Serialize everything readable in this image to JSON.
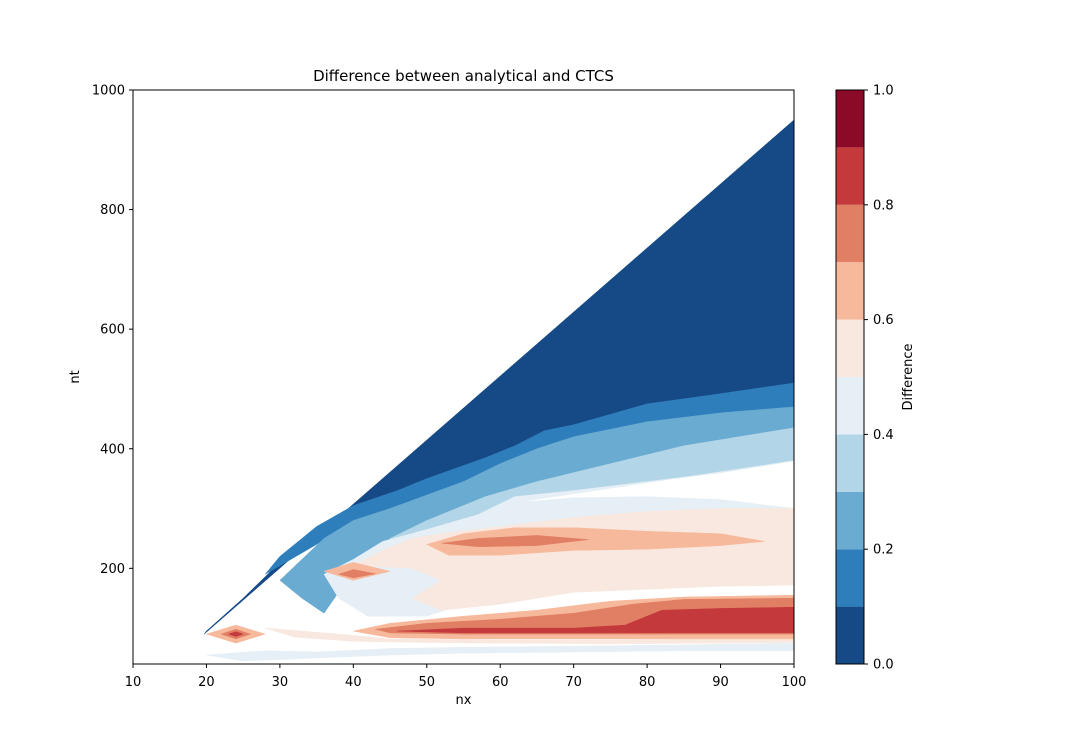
{
  "chart_data": {
    "type": "contour",
    "title": "Difference between analytical and CTCS",
    "xlabel": "nx",
    "ylabel": "nt",
    "xlim": [
      10,
      100
    ],
    "ylim": [
      40,
      1000
    ],
    "xticks": [
      "10",
      "20",
      "30",
      "40",
      "50",
      "60",
      "70",
      "80",
      "90",
      "100"
    ],
    "yticks": [
      "200",
      "400",
      "600",
      "800",
      "1000"
    ],
    "grid": false,
    "colorbar": {
      "label": "Difference",
      "ticks": [
        "0.0",
        "0.2",
        "0.4",
        "0.6",
        "0.8",
        "1.0"
      ],
      "levels": [
        0.0,
        0.1,
        0.2,
        0.3,
        0.4,
        0.5,
        0.6,
        0.7,
        0.8,
        0.9,
        1.0
      ],
      "colors": [
        "#154a87",
        "#2f7ebc",
        "#6aabd2",
        "#b2d5e8",
        "#e5eff5",
        "#f9e8df",
        "#f7b99c",
        "#e17f65",
        "#c43a3c",
        "#8b0a27"
      ]
    },
    "domain_note_boundary": {
      "x": [
        19.7,
        100
      ],
      "y": [
        90,
        950
      ]
    },
    "regions": [
      {
        "name": "upper-dark",
        "level": 0,
        "polygon": [
          [
            19.7,
            90
          ],
          [
            100,
            950
          ],
          [
            100,
            510
          ],
          [
            90,
            492
          ],
          [
            80,
            475
          ],
          [
            70,
            440
          ],
          [
            66,
            430
          ],
          [
            62,
            405
          ],
          [
            58,
            385
          ],
          [
            50,
            335
          ],
          [
            46,
            310
          ],
          [
            40,
            290
          ],
          [
            35,
            260
          ],
          [
            30,
            210
          ],
          [
            25,
            150
          ],
          [
            20,
            95
          ]
        ]
      },
      {
        "name": "band-0.1",
        "level": 1,
        "polygon": [
          [
            100,
            510
          ],
          [
            90,
            492
          ],
          [
            80,
            475
          ],
          [
            70,
            440
          ],
          [
            66,
            430
          ],
          [
            62,
            405
          ],
          [
            58,
            385
          ],
          [
            50,
            350
          ],
          [
            46,
            330
          ],
          [
            40,
            305
          ],
          [
            35,
            270
          ],
          [
            30,
            220
          ],
          [
            28,
            190
          ],
          [
            35,
            240
          ],
          [
            40,
            280
          ],
          [
            45,
            300
          ],
          [
            55,
            345
          ],
          [
            60,
            375
          ],
          [
            65,
            400
          ],
          [
            70,
            420
          ],
          [
            80,
            445
          ],
          [
            90,
            460
          ],
          [
            100,
            470
          ]
        ]
      },
      {
        "name": "band-0.2",
        "level": 2,
        "polygon": [
          [
            100,
            470
          ],
          [
            90,
            460
          ],
          [
            80,
            445
          ],
          [
            70,
            420
          ],
          [
            65,
            400
          ],
          [
            60,
            375
          ],
          [
            55,
            345
          ],
          [
            45,
            300
          ],
          [
            40,
            280
          ],
          [
            36,
            250
          ],
          [
            30,
            180
          ],
          [
            33,
            150
          ],
          [
            36,
            125
          ],
          [
            38,
            160
          ],
          [
            42,
            200
          ],
          [
            45,
            250
          ],
          [
            50,
            280
          ],
          [
            58,
            320
          ],
          [
            65,
            345
          ],
          [
            75,
            375
          ],
          [
            85,
            405
          ],
          [
            100,
            435
          ]
        ]
      },
      {
        "name": "band-0.3",
        "level": 3,
        "polygon": [
          [
            100,
            435
          ],
          [
            85,
            405
          ],
          [
            75,
            375
          ],
          [
            65,
            345
          ],
          [
            58,
            320
          ],
          [
            50,
            280
          ],
          [
            45,
            250
          ],
          [
            42,
            200
          ],
          [
            40,
            175
          ],
          [
            45,
            225
          ],
          [
            50,
            255
          ],
          [
            57,
            290
          ],
          [
            62,
            320
          ],
          [
            70,
            330
          ],
          [
            80,
            345
          ],
          [
            90,
            360
          ],
          [
            100,
            380
          ]
        ]
      },
      {
        "name": "band-0.4-upper",
        "level": 4,
        "polygon": [
          [
            100,
            380
          ],
          [
            90,
            360
          ],
          [
            80,
            345
          ],
          [
            70,
            330
          ],
          [
            62,
            320
          ],
          [
            57,
            290
          ],
          [
            50,
            265
          ],
          [
            44,
            245
          ],
          [
            40,
            215
          ],
          [
            36,
            190
          ],
          [
            38,
            150
          ],
          [
            42,
            120
          ],
          [
            50,
            120
          ],
          [
            55,
            140
          ],
          [
            62,
            160
          ],
          [
            70,
            170
          ],
          [
            80,
            175
          ],
          [
            90,
            178
          ],
          [
            100,
            180
          ],
          [
            100,
            300
          ],
          [
            90,
            315
          ],
          [
            80,
            320
          ],
          [
            70,
            318
          ],
          [
            62,
            310
          ]
        ]
      },
      {
        "name": "band-0.4-lower",
        "level": 4,
        "polygon": [
          [
            20,
            55
          ],
          [
            25,
            45
          ],
          [
            35,
            50
          ],
          [
            45,
            55
          ],
          [
            55,
            58
          ],
          [
            70,
            60
          ],
          [
            85,
            62
          ],
          [
            100,
            62
          ],
          [
            100,
            75
          ],
          [
            85,
            72
          ],
          [
            70,
            70
          ],
          [
            55,
            68
          ],
          [
            45,
            66
          ],
          [
            35,
            60
          ],
          [
            28,
            62
          ]
        ]
      },
      {
        "name": "band-0.5",
        "level": 5,
        "polygon": [
          [
            100,
            300
          ],
          [
            90,
            300
          ],
          [
            80,
            295
          ],
          [
            70,
            285
          ],
          [
            60,
            270
          ],
          [
            53,
            260
          ],
          [
            48,
            250
          ],
          [
            44,
            230
          ],
          [
            40,
            205
          ],
          [
            48,
            200
          ],
          [
            52,
            180
          ],
          [
            48,
            150
          ],
          [
            52,
            130
          ],
          [
            60,
            140
          ],
          [
            70,
            160
          ],
          [
            80,
            165
          ],
          [
            90,
            170
          ],
          [
            100,
            172
          ]
        ]
      },
      {
        "name": "band-0.5-lower",
        "level": 5,
        "polygon": [
          [
            28,
            100
          ],
          [
            32,
            85
          ],
          [
            40,
            78
          ],
          [
            50,
            76
          ],
          [
            60,
            75
          ],
          [
            75,
            74
          ],
          [
            90,
            75
          ],
          [
            100,
            76
          ],
          [
            100,
            85
          ],
          [
            90,
            82
          ],
          [
            75,
            80
          ],
          [
            60,
            80
          ],
          [
            45,
            82
          ],
          [
            38,
            90
          ]
        ]
      },
      {
        "name": "band-0.6-upper",
        "level": 6,
        "polygon": [
          [
            50,
            240
          ],
          [
            55,
            258
          ],
          [
            62,
            268
          ],
          [
            70,
            268
          ],
          [
            80,
            262
          ],
          [
            90,
            258
          ],
          [
            96,
            245
          ],
          [
            90,
            238
          ],
          [
            80,
            232
          ],
          [
            70,
            230
          ],
          [
            60,
            222
          ],
          [
            53,
            222
          ]
        ]
      },
      {
        "name": "band-0.6-mid",
        "level": 6,
        "polygon": [
          [
            36,
            195
          ],
          [
            40,
            210
          ],
          [
            45,
            195
          ],
          [
            40,
            180
          ]
        ]
      },
      {
        "name": "band-0.6-lower",
        "level": 6,
        "polygon": [
          [
            40,
            95
          ],
          [
            45,
            108
          ],
          [
            55,
            120
          ],
          [
            65,
            130
          ],
          [
            75,
            145
          ],
          [
            85,
            152
          ],
          [
            100,
            155
          ],
          [
            100,
            82
          ],
          [
            85,
            82
          ],
          [
            70,
            82
          ],
          [
            55,
            82
          ],
          [
            45,
            84
          ]
        ]
      },
      {
        "name": "band-0.6-spot",
        "level": 6,
        "polygon": [
          [
            20,
            90
          ],
          [
            24,
            105
          ],
          [
            28,
            90
          ],
          [
            24,
            75
          ]
        ]
      },
      {
        "name": "band-0.7-upper",
        "level": 7,
        "polygon": [
          [
            52,
            242
          ],
          [
            57,
            250
          ],
          [
            65,
            255
          ],
          [
            72,
            248
          ],
          [
            65,
            238
          ],
          [
            57,
            236
          ]
        ]
      },
      {
        "name": "band-0.7-mid",
        "level": 7,
        "polygon": [
          [
            38,
            190
          ],
          [
            40,
            198
          ],
          [
            43,
            191
          ],
          [
            40,
            184
          ]
        ]
      },
      {
        "name": "band-0.7-lower",
        "level": 7,
        "polygon": [
          [
            43,
            98
          ],
          [
            50,
            108
          ],
          [
            60,
            115
          ],
          [
            70,
            125
          ],
          [
            78,
            140
          ],
          [
            85,
            148
          ],
          [
            100,
            150
          ],
          [
            100,
            90
          ],
          [
            85,
            90
          ],
          [
            70,
            90
          ],
          [
            55,
            90
          ],
          [
            45,
            92
          ]
        ]
      },
      {
        "name": "band-0.7-spot",
        "level": 7,
        "polygon": [
          [
            22,
            90
          ],
          [
            24,
            98
          ],
          [
            26,
            90
          ],
          [
            24,
            82
          ]
        ]
      },
      {
        "name": "band-0.8-lower",
        "level": 8,
        "polygon": [
          [
            46,
            95
          ],
          [
            55,
            100
          ],
          [
            70,
            100
          ],
          [
            77,
            105
          ],
          [
            82,
            130
          ],
          [
            90,
            133
          ],
          [
            100,
            135
          ],
          [
            100,
            92
          ],
          [
            85,
            92
          ],
          [
            70,
            92
          ],
          [
            55,
            92
          ]
        ]
      },
      {
        "name": "band-0.8-spot",
        "level": 8,
        "polygon": [
          [
            23,
            90
          ],
          [
            24,
            94
          ],
          [
            25,
            90
          ],
          [
            24,
            86
          ]
        ]
      }
    ]
  }
}
